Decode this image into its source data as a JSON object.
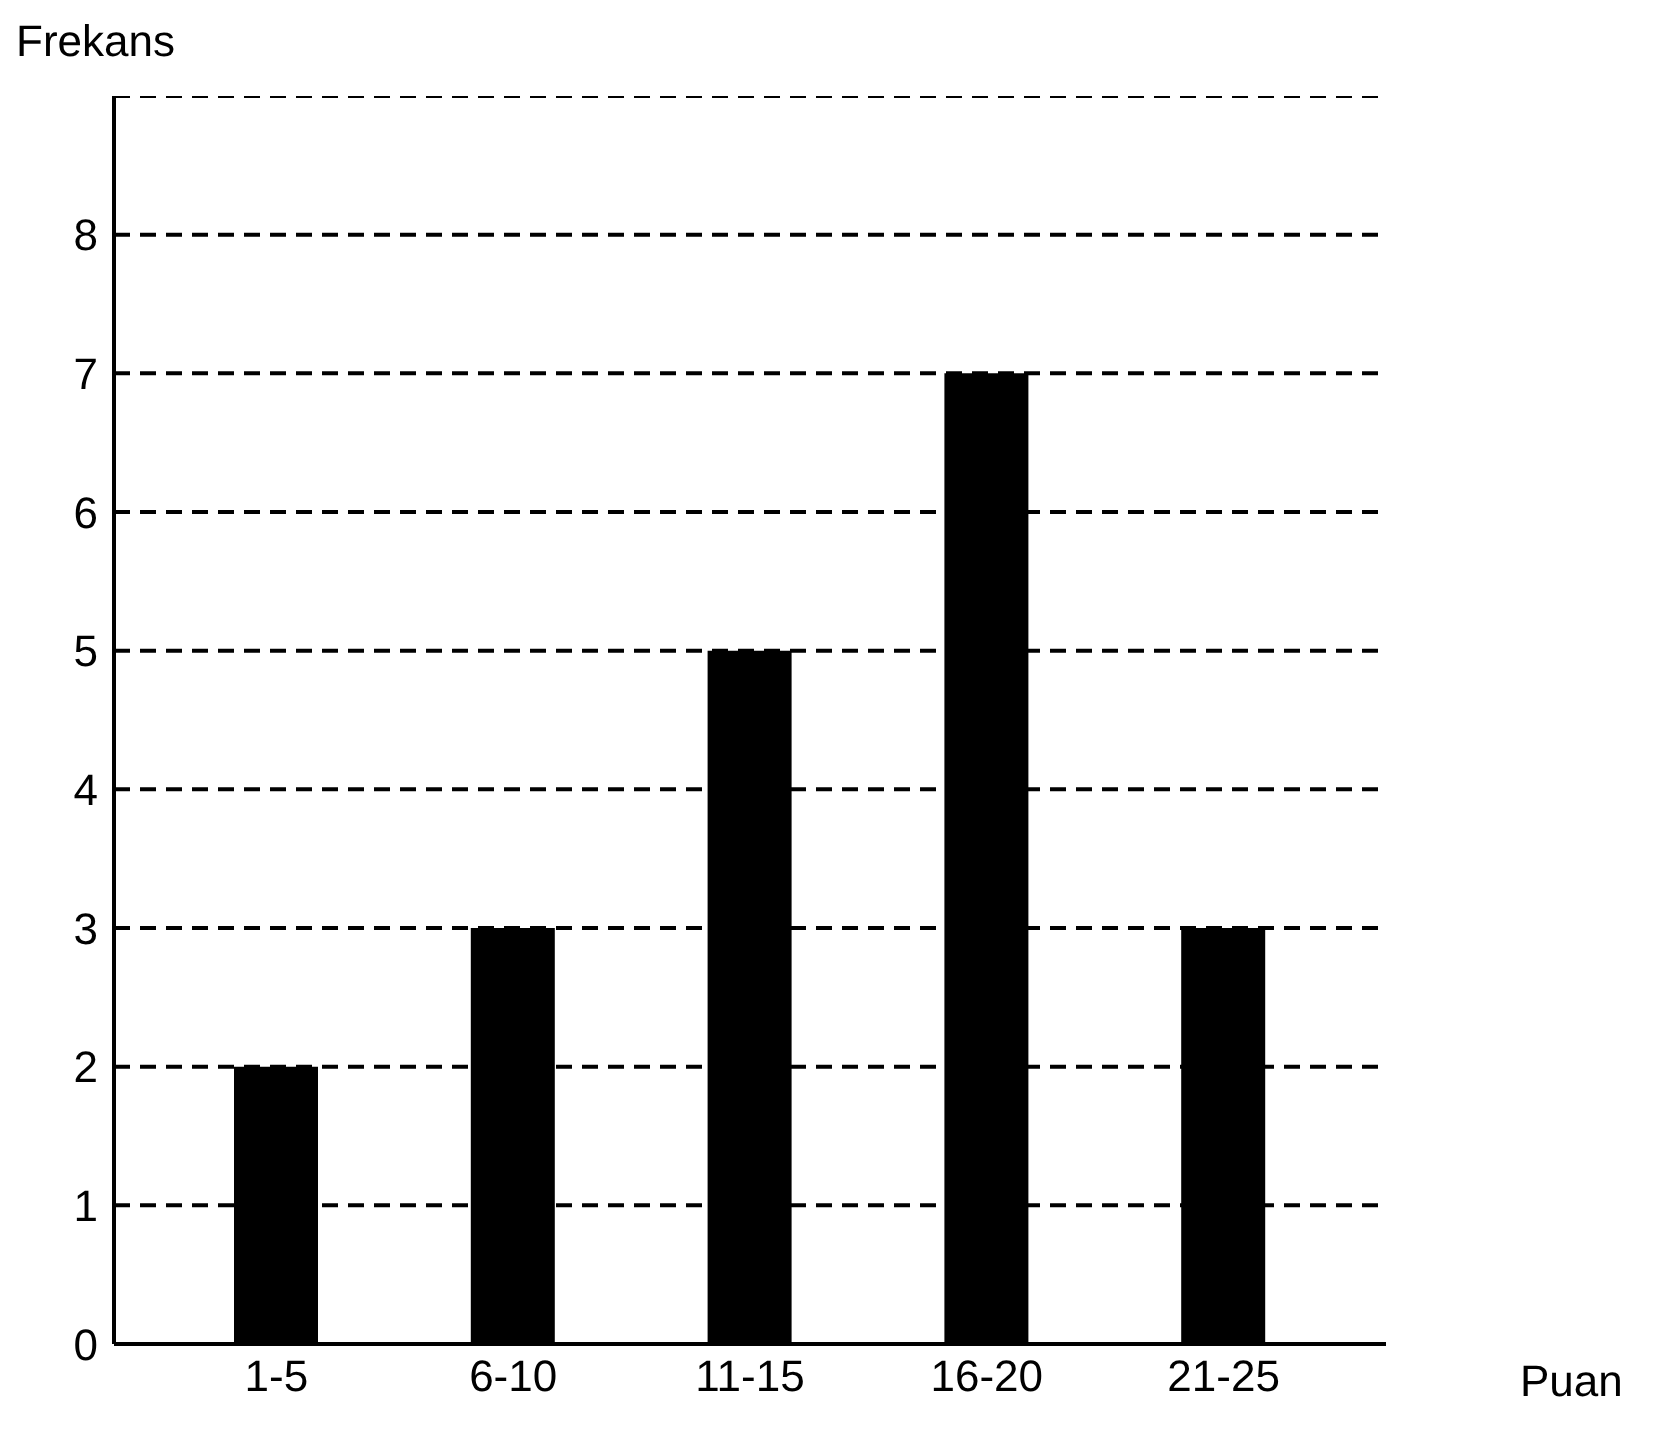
{
  "chart_data": {
    "type": "bar",
    "xlabel": "Puan",
    "ylabel": "Frekans",
    "categories": [
      "1-5",
      "6-10",
      "11-15",
      "16-20",
      "21-25"
    ],
    "values": [
      2,
      3,
      5,
      7,
      3
    ],
    "color": "#000000",
    "ylim": [
      0,
      9
    ],
    "yticks": [
      0,
      1,
      2,
      3,
      4,
      5,
      6,
      7,
      8
    ],
    "grid": "y"
  }
}
